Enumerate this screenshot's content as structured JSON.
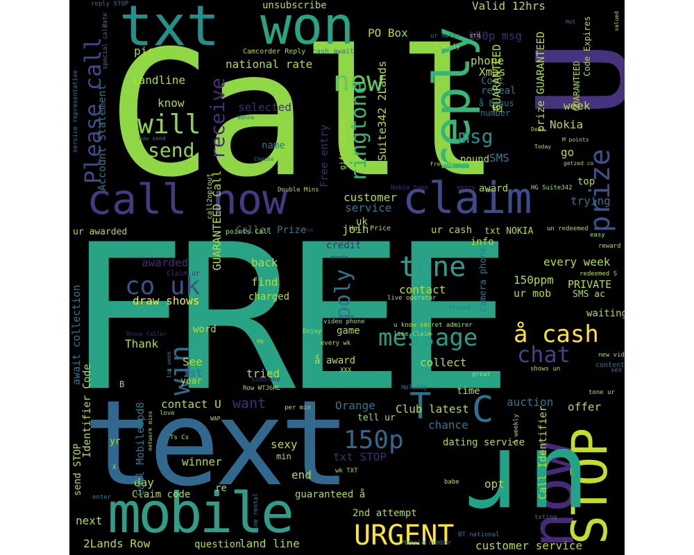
{
  "palette": {
    "light_green": "#8fd744",
    "green": "#35b779",
    "teal": "#21918c",
    "blue": "#31688e",
    "indigo": "#443983",
    "purple": "#440154",
    "yellow": "#fde725",
    "lime": "#b5de2b",
    "background": "#000000"
  },
  "words": [
    {
      "text": "Call",
      "color": "#8fd744"
    },
    {
      "text": "FREE",
      "color": "#29a386"
    },
    {
      "text": "U",
      "color": "#46337e"
    },
    {
      "text": "text",
      "color": "#31688e"
    },
    {
      "text": "txt",
      "color": "#21918c"
    },
    {
      "text": "won",
      "color": "#25a584"
    },
    {
      "text": "call now",
      "color": "#443983"
    },
    {
      "text": "claim",
      "color": "#3e4a89"
    },
    {
      "text": "mobile",
      "color": "#2e9e89"
    },
    {
      "text": "reply",
      "color": "#35b779"
    },
    {
      "text": "now",
      "color": "#482878"
    },
    {
      "text": "STOP",
      "color": "#c2df23"
    },
    {
      "text": "ur",
      "color": "#20a386"
    },
    {
      "text": "prize",
      "color": "#3b528b"
    },
    {
      "text": "tone",
      "color": "#2a9d8e"
    },
    {
      "text": "message",
      "color": "#1fa187"
    },
    {
      "text": "å cash",
      "color": "#fde725"
    },
    {
      "text": "chat",
      "color": "#414487"
    },
    {
      "text": "co uk",
      "color": "#3b528b"
    },
    {
      "text": "win",
      "color": "#31688e"
    },
    {
      "text": "URGENT",
      "color": "#fde725"
    },
    {
      "text": "150p",
      "color": "#31688e"
    },
    {
      "text": "C",
      "color": "#2c728e"
    },
    {
      "text": "T",
      "color": "#2c728e"
    },
    {
      "text": "Please call",
      "color": "#3e4a89"
    },
    {
      "text": "will",
      "color": "#8fd744"
    },
    {
      "text": "send",
      "color": "#8fd744"
    },
    {
      "text": "receive",
      "color": "#472d7b"
    },
    {
      "text": "new",
      "color": "#5ec962"
    },
    {
      "text": "ringtone",
      "color": "#35b779"
    },
    {
      "text": "poly",
      "color": "#2a788e"
    },
    {
      "text": "msg",
      "color": "#21918c"
    },
    {
      "text": "unsubscribe",
      "color": "#b5de2b"
    },
    {
      "text": "PO Box",
      "color": "#b5de2b"
    },
    {
      "text": "Valid 12hrs",
      "color": "#b5de2b"
    },
    {
      "text": "150p msg",
      "color": "#482878"
    },
    {
      "text": "pic",
      "color": "#b5de2b"
    },
    {
      "text": "landline",
      "color": "#b5de2b"
    },
    {
      "text": "national rate",
      "color": "#b5de2b"
    },
    {
      "text": "phone",
      "color": "#b5de2b"
    },
    {
      "text": "Xmas",
      "color": "#b5de2b"
    },
    {
      "text": "Cost",
      "color": "#2a788e"
    },
    {
      "text": "reveal",
      "color": "#2a788e"
    },
    {
      "text": "know",
      "color": "#b5de2b"
    },
    {
      "text": "selected",
      "color": "#482878"
    },
    {
      "text": "name",
      "color": "#2a788e"
    },
    {
      "text": "week",
      "color": "#b5de2b"
    },
    {
      "text": "Nokia",
      "color": "#b5de2b"
    },
    {
      "text": "SMS",
      "color": "#2a788e"
    },
    {
      "text": "go",
      "color": "#b5de2b"
    },
    {
      "text": "top",
      "color": "#b5de2b"
    },
    {
      "text": "trying",
      "color": "#2a788e"
    },
    {
      "text": "customer",
      "color": "#b5de2b"
    },
    {
      "text": "service",
      "color": "#2a788e"
    },
    {
      "text": "uk",
      "color": "#b5de2b"
    },
    {
      "text": "join",
      "color": "#b5de2b"
    },
    {
      "text": "GUARANTEED",
      "color": "#b5de2b"
    },
    {
      "text": "Account Statement",
      "color": "#2a788e"
    },
    {
      "text": "Suite342 2Lands",
      "color": "#b5de2b"
    },
    {
      "text": "GUARANTEED Call",
      "color": "#b5de2b"
    },
    {
      "text": "every week",
      "color": "#b5de2b"
    },
    {
      "text": "PRIVATE",
      "color": "#b5de2b"
    },
    {
      "text": "150ppm",
      "color": "#b5de2b"
    },
    {
      "text": "ur mob",
      "color": "#b5de2b"
    },
    {
      "text": "SMS ac",
      "color": "#b5de2b"
    },
    {
      "text": "waiting",
      "color": "#b5de2b"
    },
    {
      "text": "awarded",
      "color": "#482878"
    },
    {
      "text": "back",
      "color": "#b5de2b"
    },
    {
      "text": "find",
      "color": "#b5de2b"
    },
    {
      "text": "charged",
      "color": "#b5de2b"
    },
    {
      "text": "contact",
      "color": "#b5de2b"
    },
    {
      "text": "draw shows",
      "color": "#fde725"
    },
    {
      "text": "Thank",
      "color": "#b5de2b"
    },
    {
      "text": "game",
      "color": "#b5de2b"
    },
    {
      "text": "word",
      "color": "#b5de2b"
    },
    {
      "text": "collect",
      "color": "#b5de2b"
    },
    {
      "text": "See",
      "color": "#b5de2b"
    },
    {
      "text": "1st",
      "color": "#2a788e"
    },
    {
      "text": "year",
      "color": "#b5de2b"
    },
    {
      "text": "tried",
      "color": "#b5de2b"
    },
    {
      "text": "want",
      "color": "#482878"
    },
    {
      "text": "Orange",
      "color": "#2a788e"
    },
    {
      "text": "contact U",
      "color": "#b5de2b"
    },
    {
      "text": "Club",
      "color": "#b5de2b"
    },
    {
      "text": "latest",
      "color": "#b5de2b"
    },
    {
      "text": "chance",
      "color": "#2a788e"
    },
    {
      "text": "auction",
      "color": "#2a788e"
    },
    {
      "text": "offer",
      "color": "#b5de2b"
    },
    {
      "text": "dating service",
      "color": "#b5de2b"
    },
    {
      "text": "sexy",
      "color": "#b5de2b"
    },
    {
      "text": "txt STOP",
      "color": "#482878"
    },
    {
      "text": "winner",
      "color": "#b5de2b"
    },
    {
      "text": "day",
      "color": "#b5de2b"
    },
    {
      "text": "Claim code",
      "color": "#b5de2b"
    },
    {
      "text": "send STOP",
      "color": "#b5de2b"
    },
    {
      "text": "end",
      "color": "#b5de2b"
    },
    {
      "text": "guaranteed å",
      "color": "#b5de2b"
    },
    {
      "text": "opt",
      "color": "#b5de2b"
    },
    {
      "text": "next",
      "color": "#b5de2b"
    },
    {
      "text": "2nd attempt",
      "color": "#b5de2b"
    },
    {
      "text": "2Lands Row",
      "color": "#b5de2b"
    },
    {
      "text": "question",
      "color": "#b5de2b"
    },
    {
      "text": "land line",
      "color": "#b5de2b"
    },
    {
      "text": "customer service",
      "color": "#b5de2b"
    },
    {
      "text": "Call MobileUpd8",
      "color": "#2a788e"
    },
    {
      "text": "Identifier Code",
      "color": "#b5de2b"
    },
    {
      "text": "await collection",
      "color": "#2a788e"
    },
    {
      "text": "Call Identifier",
      "color": "#b5de2b"
    },
    {
      "text": "prize GUARANTEED",
      "color": "#b5de2b"
    },
    {
      "text": "Free entry",
      "color": "#482878"
    },
    {
      "text": "Hi",
      "color": "#b5de2b"
    },
    {
      "text": "pound",
      "color": "#b5de2b"
    },
    {
      "text": "award",
      "color": "#b5de2b"
    },
    {
      "text": "ur awarded",
      "color": "#b5de2b"
    },
    {
      "text": "Caller Prize",
      "color": "#2a788e"
    },
    {
      "text": "ur cash",
      "color": "#b5de2b"
    },
    {
      "text": "txt NOKIA",
      "color": "#b5de2b"
    },
    {
      "text": "info",
      "color": "#b5de2b"
    },
    {
      "text": "credit",
      "color": "#482878"
    },
    {
      "text": "camera phone",
      "color": "#2a788e"
    },
    {
      "text": "å award",
      "color": "#b5de2b"
    },
    {
      "text": "tell ur",
      "color": "#b5de2b"
    },
    {
      "text": "yr",
      "color": "#b5de2b"
    },
    {
      "text": "min",
      "color": "#b5de2b"
    },
    {
      "text": "re",
      "color": "#b5de2b"
    },
    {
      "text": "time",
      "color": "#b5de2b"
    },
    {
      "text": "Code Expires",
      "color": "#b5de2b"
    },
    {
      "text": "GUARANTEED",
      "color": "#b5de2b"
    },
    {
      "text": "å Bonus",
      "color": "#2a788e"
    },
    {
      "text": "number",
      "color": "#2a788e"
    },
    {
      "text": "gift voucher",
      "color": "#b5de2b"
    },
    {
      "text": "Camcorder Reply",
      "color": "#b5de2b"
    },
    {
      "text": "cash await",
      "color": "#2a788e"
    },
    {
      "text": "ur mates",
      "color": "#2a788e"
    },
    {
      "text": "C apply",
      "color": "#b5de2b"
    },
    {
      "text": "std",
      "color": "#b5de2b"
    },
    {
      "text": "reply STOP",
      "color": "#2a788e"
    },
    {
      "text": "date",
      "color": "#2a788e"
    },
    {
      "text": "special call",
      "color": "#2a788e"
    },
    {
      "text": "service representative",
      "color": "#2a788e"
    },
    {
      "text": "Wanna",
      "color": "#2a788e"
    },
    {
      "text": "now send",
      "color": "#2a788e"
    },
    {
      "text": "Choose",
      "color": "#2a788e"
    },
    {
      "text": "Double Mins",
      "color": "#b5de2b"
    },
    {
      "text": "call2optout",
      "color": "#b5de2b"
    },
    {
      "text": "points Call",
      "color": "#b5de2b"
    },
    {
      "text": "Half Price",
      "color": "#b5de2b"
    },
    {
      "text": "Nokia tone",
      "color": "#482878"
    },
    {
      "text": "entry",
      "color": "#482878"
    },
    {
      "text": "HG Suite342",
      "color": "#b5de2b"
    },
    {
      "text": "un redeemed",
      "color": "#b5de2b"
    },
    {
      "text": "easy",
      "color": "#b5de2b"
    },
    {
      "text": "reward",
      "color": "#b5de2b"
    },
    {
      "text": "redeemed S",
      "color": "#b5de2b"
    },
    {
      "text": "friend",
      "color": "#2a788e"
    },
    {
      "text": "live operator",
      "color": "#b5de2b"
    },
    {
      "text": "video phone",
      "color": "#b5de2b"
    },
    {
      "text": "u know secret admirer",
      "color": "#b5de2b"
    },
    {
      "text": "line Claim",
      "color": "#b5de2b"
    },
    {
      "text": "every wk",
      "color": "#b5de2b"
    },
    {
      "text": "Enjoy",
      "color": "#b5de2b"
    },
    {
      "text": "Holiday",
      "color": "#2a788e"
    },
    {
      "text": "great",
      "color": "#b5de2b"
    },
    {
      "text": "shows un",
      "color": "#b5de2b"
    },
    {
      "text": "content",
      "color": "#2a788e"
    },
    {
      "text": "new video",
      "color": "#b5de2b"
    },
    {
      "text": "sex",
      "color": "#2a788e"
    },
    {
      "text": "tone ur",
      "color": "#b5de2b"
    },
    {
      "text": "Row WTJ6HL",
      "color": "#b5de2b"
    },
    {
      "text": "someone",
      "color": "#482878"
    },
    {
      "text": "XXX",
      "color": "#b5de2b"
    },
    {
      "text": "per min",
      "color": "#b5de2b"
    },
    {
      "text": "love",
      "color": "#b5de2b"
    },
    {
      "text": "WAP",
      "color": "#b5de2b"
    },
    {
      "text": "Ts Cs",
      "color": "#b5de2b"
    },
    {
      "text": "network mins",
      "color": "#b5de2b"
    },
    {
      "text": "1st week",
      "color": "#2a788e"
    },
    {
      "text": "Bonus Caller",
      "color": "#482878"
    },
    {
      "text": "wk TXT",
      "color": "#b5de2b"
    },
    {
      "text": "babe",
      "color": "#b5de2b"
    },
    {
      "text": "enter",
      "color": "#2a788e"
    },
    {
      "text": "line rental",
      "color": "#2a788e"
    },
    {
      "text": "Mobile number",
      "color": "#2a788e"
    },
    {
      "text": "BT national",
      "color": "#2a788e"
    },
    {
      "text": "txting",
      "color": "#2a788e"
    },
    {
      "text": "å weekly",
      "color": "#b5de2b"
    },
    {
      "text": "FreeMsg",
      "color": "#b5de2b"
    },
    {
      "text": "Today",
      "color": "#b5de2b"
    },
    {
      "text": "getzed co",
      "color": "#b5de2b"
    },
    {
      "text": "Dear",
      "color": "#b5de2b"
    },
    {
      "text": "valued",
      "color": "#b5de2b"
    },
    {
      "text": "Hot",
      "color": "#2a788e"
    },
    {
      "text": "month",
      "color": "#482878"
    },
    {
      "text": "Claim ur",
      "color": "#482878"
    },
    {
      "text": "M points",
      "color": "#b5de2b"
    },
    {
      "text": "B",
      "color": "#b5de2b"
    },
    {
      "text": "X",
      "color": "#b5de2b"
    },
    {
      "text": "mg",
      "color": "#b5de2b"
    },
    {
      "text": "one",
      "color": "#482878"
    }
  ]
}
